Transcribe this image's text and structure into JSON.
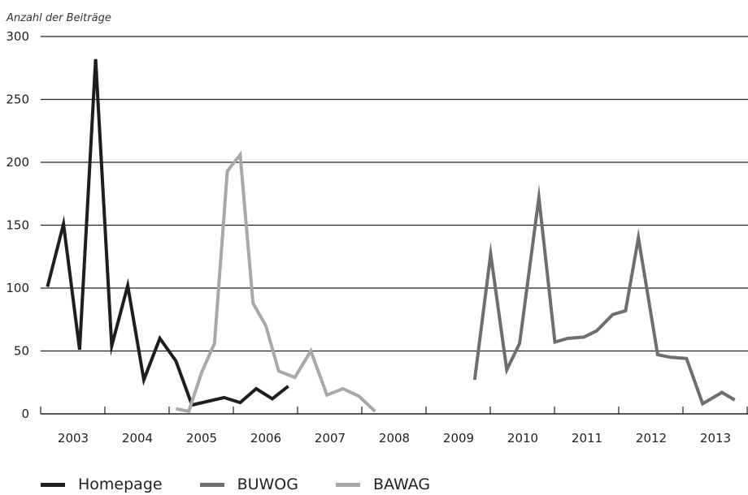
{
  "chart_data": {
    "type": "line",
    "ylabel": "Anzahl der Beiträge",
    "ylim": [
      0,
      300
    ],
    "yticks": [
      0,
      50,
      100,
      150,
      200,
      250,
      300
    ],
    "xlim": [
      2002.6,
      2013.55
    ],
    "xticks": [
      "2003",
      "2004",
      "2005",
      "2006",
      "2007",
      "2008",
      "2009",
      "2010",
      "2011",
      "2012",
      "2013"
    ],
    "grid": "horizontal",
    "legend_position": "bottom-left",
    "series": [
      {
        "name": "Homepage",
        "color": "#1e1e1e",
        "x": [
          2002.6,
          2002.85,
          2003.1,
          2003.35,
          2003.6,
          2003.85,
          2004.1,
          2004.35,
          2004.6,
          2004.85,
          2005.1,
          2005.35,
          2005.6,
          2005.85,
          2006.1,
          2006.35
        ],
        "y": [
          101,
          151,
          51,
          282,
          54,
          102,
          27,
          60,
          42,
          7,
          10,
          13,
          9,
          20,
          12,
          22
        ]
      },
      {
        "name": "BUWOG",
        "color": "#6e6e6e",
        "x": [
          2009.25,
          2009.5,
          2009.75,
          2009.95,
          2010.25,
          2010.5,
          2010.7,
          2010.95,
          2011.15,
          2011.4,
          2011.6,
          2011.8,
          2012.1,
          2012.3,
          2012.55,
          2012.8,
          2013.1,
          2013.3
        ],
        "y": [
          27,
          127,
          35,
          56,
          172,
          57,
          60,
          61,
          66,
          79,
          82,
          140,
          47,
          45,
          44,
          8,
          17,
          11
        ]
      },
      {
        "name": "BAWAG",
        "color": "#a8a8a8",
        "x": [
          2004.6,
          2004.8,
          2005.0,
          2005.2,
          2005.4,
          2005.6,
          2005.8,
          2006.0,
          2006.2,
          2006.45,
          2006.7,
          2006.95,
          2007.2,
          2007.45,
          2007.7,
          2007.95,
          2008.2
        ],
        "y": [
          4,
          2,
          33,
          56,
          193,
          206,
          88,
          70,
          34,
          29,
          50,
          15,
          20,
          14,
          2,
          null,
          null
        ]
      }
    ]
  }
}
